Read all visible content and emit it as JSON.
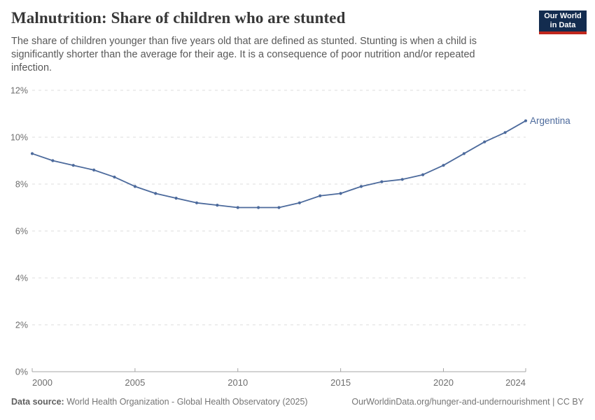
{
  "header": {
    "title": "Malnutrition: Share of children who are stunted",
    "subtitle": "The share of children younger than five years old that are defined as stunted. Stunting is when a child is significantly shorter than the average for their age. It is a consequence of poor nutrition and/or repeated infection.",
    "logo": {
      "line1": "Our World",
      "line2": "in Data",
      "bg_color": "#132c4f",
      "stripe_color": "#c0271d"
    }
  },
  "chart_data": {
    "type": "line",
    "title": "Malnutrition: Share of children who are stunted",
    "xlabel": "",
    "ylabel": "",
    "xlim": [
      2000,
      2024
    ],
    "ylim": [
      0,
      12
    ],
    "grid": "horizontal-dashed",
    "legend_position": "end-of-line",
    "x": [
      2000,
      2001,
      2002,
      2003,
      2004,
      2005,
      2006,
      2007,
      2008,
      2009,
      2010,
      2011,
      2012,
      2013,
      2014,
      2015,
      2016,
      2017,
      2018,
      2019,
      2020,
      2021,
      2022,
      2023,
      2024
    ],
    "series": [
      {
        "name": "Argentina",
        "color": "#4c6a9c",
        "values": [
          9.3,
          9.0,
          8.8,
          8.6,
          8.3,
          7.9,
          7.6,
          7.4,
          7.2,
          7.1,
          7.0,
          7.0,
          7.0,
          7.2,
          7.5,
          7.6,
          7.9,
          8.1,
          8.2,
          8.4,
          8.8,
          9.3,
          9.8,
          10.2,
          10.7
        ]
      }
    ],
    "yticks": [
      0,
      2,
      4,
      6,
      8,
      10,
      12
    ],
    "ytick_labels": [
      "0%",
      "2%",
      "4%",
      "6%",
      "8%",
      "10%",
      "12%"
    ],
    "xticks": [
      2000,
      2005,
      2010,
      2015,
      2020,
      2024
    ],
    "xtick_labels": [
      "2000",
      "2005",
      "2010",
      "2015",
      "2020",
      "2024"
    ]
  },
  "footer": {
    "datasource_label": "Data source:",
    "datasource_text": "World Health Organization - Global Health Observatory (2025)",
    "link_text": "OurWorldinData.org/hunger-and-undernourishment | CC BY"
  }
}
